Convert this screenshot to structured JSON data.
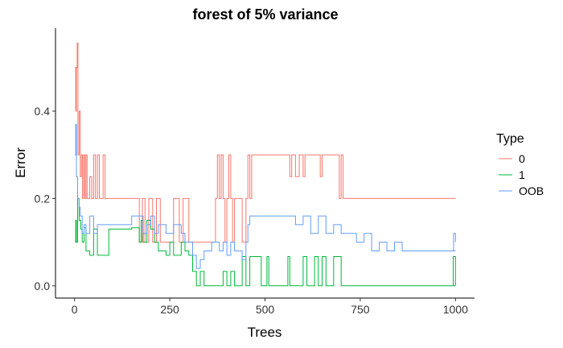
{
  "chart_data": {
    "type": "line",
    "title": "forest of 5% variance",
    "xlabel": "Trees",
    "ylabel": "Error",
    "xlim": [
      -50,
      1050
    ],
    "ylim": [
      -0.028,
      0.59
    ],
    "xticks": [
      0,
      250,
      500,
      750,
      1000
    ],
    "xtick_labels": [
      "0",
      "250",
      "500",
      "750",
      "1000"
    ],
    "yticks": [
      0.0,
      0.2,
      0.4
    ],
    "ytick_labels": [
      "0.0",
      "0.2",
      "0.4"
    ],
    "grid": false,
    "legend": {
      "title": "Type",
      "position": "right"
    },
    "series": [
      {
        "name": "0",
        "color": "#F8766D",
        "points": [
          [
            1,
            0.5
          ],
          [
            3,
            0.4
          ],
          [
            5,
            0.5
          ],
          [
            7,
            0.556
          ],
          [
            9,
            0.3
          ],
          [
            12,
            0.4
          ],
          [
            15,
            0.25
          ],
          [
            18,
            0.3
          ],
          [
            21,
            0.2
          ],
          [
            24,
            0.3
          ],
          [
            27,
            0.2
          ],
          [
            30,
            0.3
          ],
          [
            33,
            0.2
          ],
          [
            40,
            0.25
          ],
          [
            45,
            0.2
          ],
          [
            50,
            0.3
          ],
          [
            55,
            0.2
          ],
          [
            60,
            0.3
          ],
          [
            65,
            0.2
          ],
          [
            75,
            0.3
          ],
          [
            80,
            0.2
          ],
          [
            150,
            0.2
          ],
          [
            165,
            0.2
          ],
          [
            170,
            0.1
          ],
          [
            178,
            0.2
          ],
          [
            185,
            0.1
          ],
          [
            195,
            0.2
          ],
          [
            205,
            0.1
          ],
          [
            215,
            0.2
          ],
          [
            225,
            0.1
          ],
          [
            240,
            0.1
          ],
          [
            260,
            0.2
          ],
          [
            275,
            0.1
          ],
          [
            285,
            0.2
          ],
          [
            290,
            0.2
          ],
          [
            300,
            0.1
          ],
          [
            360,
            0.1
          ],
          [
            370,
            0.2
          ],
          [
            375,
            0.3
          ],
          [
            380,
            0.2
          ],
          [
            385,
            0.3
          ],
          [
            390,
            0.2
          ],
          [
            395,
            0.1
          ],
          [
            400,
            0.2
          ],
          [
            405,
            0.3
          ],
          [
            410,
            0.2
          ],
          [
            415,
            0.1
          ],
          [
            420,
            0.2
          ],
          [
            440,
            0.1
          ],
          [
            450,
            0.2
          ],
          [
            455,
            0.3
          ],
          [
            460,
            0.2
          ],
          [
            465,
            0.3
          ],
          [
            480,
            0.3
          ],
          [
            560,
            0.3
          ],
          [
            565,
            0.25
          ],
          [
            570,
            0.3
          ],
          [
            580,
            0.25
          ],
          [
            590,
            0.3
          ],
          [
            600,
            0.25
          ],
          [
            605,
            0.3
          ],
          [
            640,
            0.3
          ],
          [
            645,
            0.25
          ],
          [
            650,
            0.3
          ],
          [
            690,
            0.3
          ],
          [
            695,
            0.2
          ],
          [
            700,
            0.3
          ],
          [
            705,
            0.2
          ],
          [
            720,
            0.2
          ],
          [
            1000,
            0.2
          ]
        ]
      },
      {
        "name": "1",
        "color": "#00BA38",
        "points": [
          [
            1,
            0.1
          ],
          [
            3,
            0.15
          ],
          [
            5,
            0.1
          ],
          [
            8,
            0.2
          ],
          [
            12,
            0.15
          ],
          [
            16,
            0.13
          ],
          [
            20,
            0.1
          ],
          [
            25,
            0.133
          ],
          [
            30,
            0.08
          ],
          [
            40,
            0.07
          ],
          [
            50,
            0.13
          ],
          [
            60,
            0.07
          ],
          [
            80,
            0.07
          ],
          [
            90,
            0.13
          ],
          [
            150,
            0.133
          ],
          [
            170,
            0.1
          ],
          [
            175,
            0.15
          ],
          [
            180,
            0.1
          ],
          [
            190,
            0.15
          ],
          [
            200,
            0.13
          ],
          [
            210,
            0.1
          ],
          [
            220,
            0.08
          ],
          [
            240,
            0.07
          ],
          [
            250,
            0.1
          ],
          [
            260,
            0.07
          ],
          [
            280,
            0.1
          ],
          [
            290,
            0.08
          ],
          [
            300,
            0.07
          ],
          [
            310,
            0.033
          ],
          [
            320,
            0.0
          ],
          [
            330,
            0.033
          ],
          [
            340,
            0.0
          ],
          [
            380,
            0.0
          ],
          [
            390,
            0.033
          ],
          [
            400,
            0.0
          ],
          [
            410,
            0.033
          ],
          [
            420,
            0.0
          ],
          [
            440,
            0.067
          ],
          [
            450,
            0.0
          ],
          [
            460,
            0.067
          ],
          [
            480,
            0.067
          ],
          [
            490,
            0.0
          ],
          [
            500,
            0.0
          ],
          [
            505,
            0.067
          ],
          [
            510,
            0.0
          ],
          [
            550,
            0.0
          ],
          [
            560,
            0.067
          ],
          [
            565,
            0.0
          ],
          [
            590,
            0.0
          ],
          [
            600,
            0.067
          ],
          [
            610,
            0.0
          ],
          [
            630,
            0.067
          ],
          [
            640,
            0.0
          ],
          [
            650,
            0.067
          ],
          [
            660,
            0.0
          ],
          [
            680,
            0.067
          ],
          [
            700,
            0.0
          ],
          [
            710,
            0.0
          ],
          [
            1000,
            0.0
          ],
          [
            994,
            0.067
          ],
          [
            1000,
            0.0
          ]
        ]
      },
      {
        "name": "OOB",
        "color": "#619CFF",
        "points": [
          [
            1,
            0.3
          ],
          [
            3,
            0.37
          ],
          [
            5,
            0.25
          ],
          [
            8,
            0.2
          ],
          [
            12,
            0.18
          ],
          [
            15,
            0.16
          ],
          [
            20,
            0.12
          ],
          [
            25,
            0.14
          ],
          [
            30,
            0.12
          ],
          [
            40,
            0.16
          ],
          [
            50,
            0.12
          ],
          [
            60,
            0.14
          ],
          [
            150,
            0.16
          ],
          [
            170,
            0.16
          ],
          [
            180,
            0.12
          ],
          [
            190,
            0.14
          ],
          [
            200,
            0.16
          ],
          [
            210,
            0.12
          ],
          [
            220,
            0.14
          ],
          [
            240,
            0.12
          ],
          [
            260,
            0.14
          ],
          [
            280,
            0.12
          ],
          [
            290,
            0.1
          ],
          [
            300,
            0.1
          ],
          [
            310,
            0.07
          ],
          [
            320,
            0.04
          ],
          [
            330,
            0.06
          ],
          [
            340,
            0.08
          ],
          [
            360,
            0.1
          ],
          [
            380,
            0.08
          ],
          [
            390,
            0.1
          ],
          [
            400,
            0.07
          ],
          [
            410,
            0.1
          ],
          [
            420,
            0.08
          ],
          [
            440,
            0.06
          ],
          [
            450,
            0.1
          ],
          [
            455,
            0.14
          ],
          [
            460,
            0.16
          ],
          [
            470,
            0.16
          ],
          [
            560,
            0.16
          ],
          [
            580,
            0.14
          ],
          [
            600,
            0.16
          ],
          [
            620,
            0.12
          ],
          [
            640,
            0.16
          ],
          [
            660,
            0.12
          ],
          [
            680,
            0.14
          ],
          [
            700,
            0.12
          ],
          [
            720,
            0.12
          ],
          [
            740,
            0.1
          ],
          [
            760,
            0.12
          ],
          [
            780,
            0.08
          ],
          [
            800,
            0.1
          ],
          [
            820,
            0.08
          ],
          [
            840,
            0.1
          ],
          [
            860,
            0.08
          ],
          [
            1000,
            0.08
          ],
          [
            995,
            0.12
          ],
          [
            1000,
            0.1
          ]
        ]
      }
    ]
  }
}
